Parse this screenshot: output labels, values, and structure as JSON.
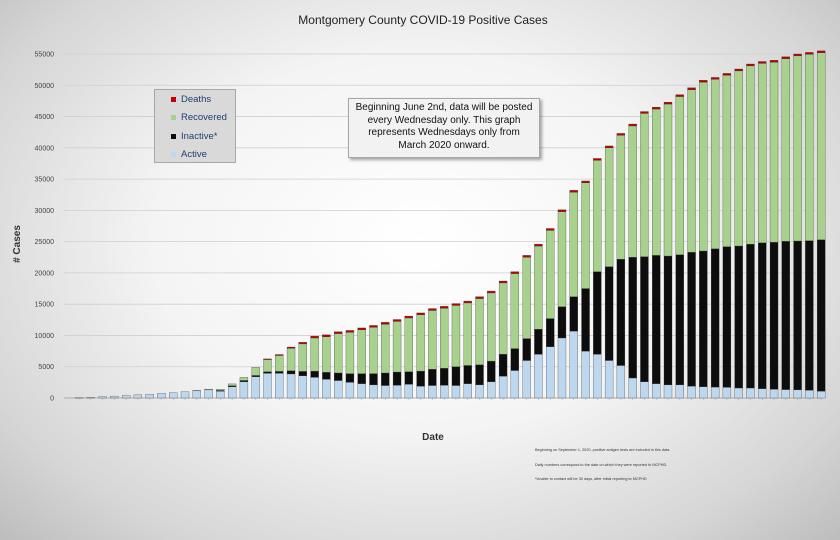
{
  "chart_data": {
    "type": "bar",
    "stacked": true,
    "title": "Montgomery County COVID-19 Positive Cases",
    "xlabel": "Date",
    "ylabel": "# Cases",
    "ylim": [
      0,
      55000
    ],
    "yticks": [
      0,
      5000,
      10000,
      15000,
      20000,
      25000,
      30000,
      35000,
      40000,
      45000,
      50000,
      55000
    ],
    "grid": true,
    "legend_position": "top-left",
    "series": [
      {
        "name": "Active",
        "color": "#bdd7ee",
        "values": [
          50,
          100,
          200,
          300,
          400,
          500,
          600,
          750,
          850,
          1000,
          1150,
          1300,
          1100,
          1800,
          2600,
          3400,
          3950,
          3950,
          3850,
          3550,
          3300,
          3000,
          2800,
          2500,
          2300,
          2100,
          2000,
          2050,
          2200,
          1900,
          2000,
          2050,
          2000,
          2300,
          2100,
          2600,
          3500,
          4400,
          6000,
          7000,
          8200,
          9600,
          10700,
          7500,
          7000,
          6000,
          5200,
          3200,
          2600,
          2300,
          2100,
          2100,
          1900,
          1800,
          1750,
          1700,
          1600,
          1600,
          1500,
          1400,
          1350,
          1300,
          1250,
          1100
        ]
      },
      {
        "name": "Inactive*",
        "color": "#0d0d0d",
        "values": [
          0,
          0,
          0,
          0,
          0,
          0,
          0,
          0,
          0,
          0,
          0,
          0,
          100,
          150,
          200,
          200,
          250,
          300,
          500,
          700,
          1000,
          1100,
          1200,
          1400,
          1600,
          1800,
          2000,
          2100,
          2000,
          2400,
          2600,
          2700,
          3000,
          2900,
          3200,
          3300,
          3500,
          3500,
          3500,
          4000,
          4500,
          5000,
          5500,
          10000,
          13200,
          15000,
          17000,
          19300,
          20000,
          20500,
          20600,
          20800,
          21400,
          21700,
          22100,
          22500,
          22700,
          23000,
          23300,
          23500,
          23700,
          23800,
          23900,
          24200
        ]
      },
      {
        "name": "Recovered",
        "color": "#a9d18e",
        "values": [
          0,
          0,
          0,
          0,
          0,
          0,
          0,
          0,
          0,
          0,
          50,
          100,
          200,
          300,
          500,
          1300,
          1950,
          2550,
          3600,
          4400,
          5300,
          5700,
          6300,
          6600,
          7000,
          7400,
          7800,
          8100,
          8600,
          9000,
          9400,
          9600,
          9800,
          10000,
          10600,
          10900,
          11400,
          12000,
          13000,
          13300,
          14100,
          15200,
          16700,
          16900,
          17800,
          19000,
          19800,
          21000,
          22900,
          23400,
          24300,
          25300,
          26000,
          27000,
          27100,
          27400,
          28000,
          28500,
          28700,
          28800,
          29200,
          29600,
          29800,
          29900
        ]
      },
      {
        "name": "Deaths",
        "color": "#c00000",
        "values": [
          0,
          0,
          0,
          0,
          0,
          0,
          0,
          0,
          0,
          0,
          0,
          0,
          0,
          0,
          0,
          0,
          100,
          150,
          200,
          250,
          300,
          300,
          300,
          300,
          300,
          300,
          300,
          300,
          300,
          300,
          300,
          300,
          300,
          300,
          300,
          300,
          300,
          300,
          300,
          300,
          300,
          300,
          300,
          300,
          300,
          300,
          300,
          300,
          300,
          300,
          300,
          300,
          300,
          300,
          300,
          300,
          300,
          300,
          300,
          300,
          300,
          300,
          300,
          300
        ]
      }
    ]
  },
  "legend": {
    "deaths": "Deaths",
    "recovered": "Recovered",
    "inactive": "Inactive*",
    "active": "Active"
  },
  "annotation": "Beginning June 2nd, data will be posted every Wednesday only. This graph represents Wednesdays only from March 2020 onward.",
  "footnotes": [
    "Beginning on September 1, 2020, positive antigen tests are included in this data.",
    "Daily numbers correspond to the date on which they were reported to MCPHD.",
    "*Unable to contact will be 30 days, after initial reporting to MCPHD"
  ]
}
